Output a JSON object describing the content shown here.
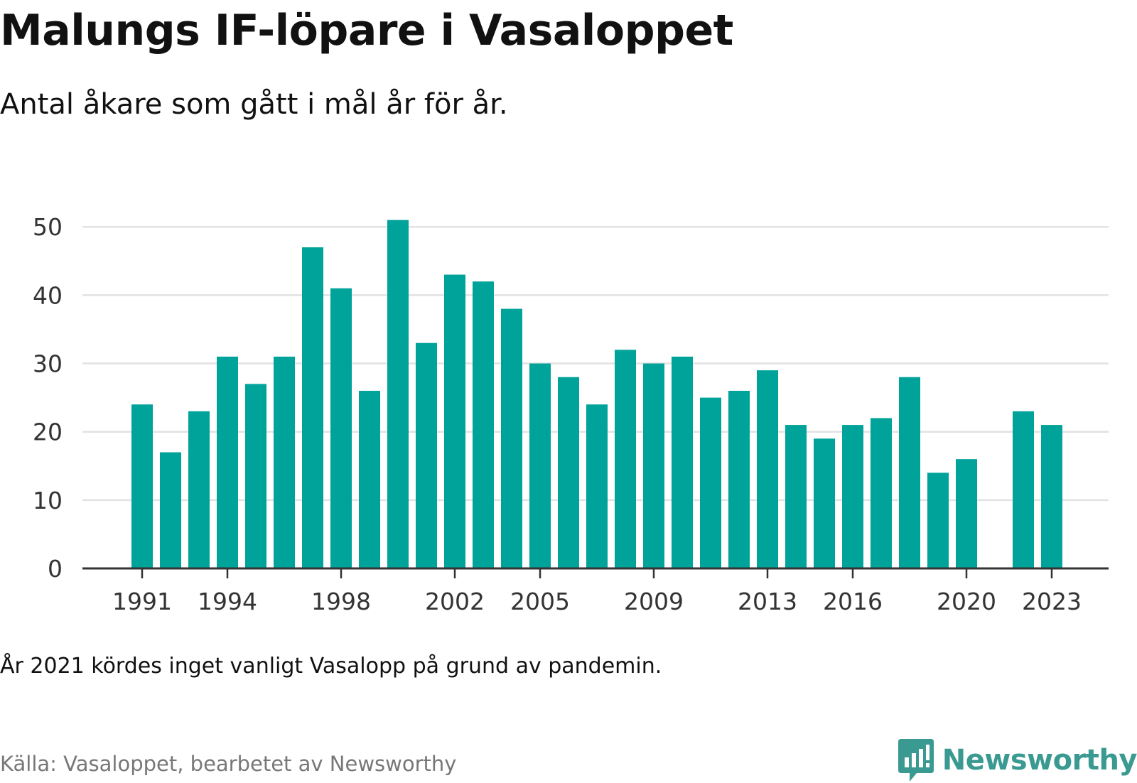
{
  "header": {
    "title": "Malungs IF-löpare i Vasaloppet",
    "subtitle": "Antal åkare som gått i mål år för år."
  },
  "footer": {
    "note": "År 2021 kördes inget vanligt Vasalopp på grund av pandemin.",
    "source": "Källa: Vasaloppet, bearbetet av Newsworthy",
    "brand": "Newsworthy",
    "brand_icon": "bar-chart-logo-icon"
  },
  "colors": {
    "bar": "#00a39a",
    "grid": "#e2e2e2",
    "axis": "#333333",
    "brand": "#3a9a92"
  },
  "chart_data": {
    "type": "bar",
    "title": "Malungs IF-löpare i Vasaloppet",
    "subtitle": "Antal åkare som gått i mål år för år.",
    "categories": [
      1991,
      1992,
      1993,
      1994,
      1995,
      1996,
      1997,
      1998,
      1999,
      2000,
      2001,
      2002,
      2003,
      2004,
      2005,
      2006,
      2007,
      2008,
      2009,
      2010,
      2011,
      2012,
      2013,
      2014,
      2015,
      2016,
      2017,
      2018,
      2019,
      2020,
      2021,
      2022,
      2023
    ],
    "values": [
      24,
      17,
      23,
      31,
      27,
      31,
      47,
      41,
      26,
      51,
      33,
      43,
      42,
      38,
      30,
      28,
      24,
      32,
      30,
      31,
      25,
      26,
      29,
      21,
      19,
      21,
      22,
      28,
      14,
      16,
      null,
      23,
      21
    ],
    "x_tick_labels": [
      "1991",
      "1994",
      "1998",
      "2002",
      "2005",
      "2009",
      "2013",
      "2016",
      "2020",
      "2023"
    ],
    "y_ticks": [
      0,
      10,
      20,
      30,
      40,
      50
    ],
    "ylim": [
      0,
      52
    ],
    "xlabel": "",
    "ylabel": "",
    "grid": true,
    "legend": "none"
  }
}
